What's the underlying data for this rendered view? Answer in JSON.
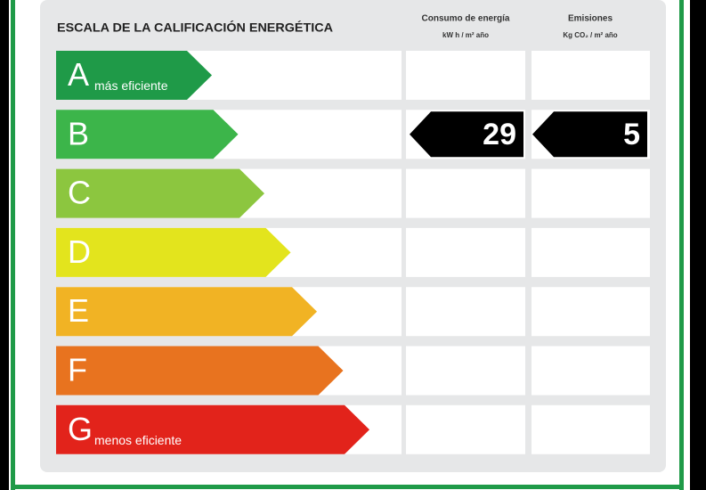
{
  "header": {
    "title": "ESCALA DE LA CALIFICACIÓN ENERGÉTICA",
    "columns": [
      {
        "title": "Consumo de energía",
        "unit": "kW h / m² año"
      },
      {
        "title": "Emisiones",
        "unit": "Kg CO₂ / m² año"
      }
    ]
  },
  "ratings": [
    {
      "letter": "A",
      "note": "más eficiente",
      "color": "#1f9a48"
    },
    {
      "letter": "B",
      "color": "#3cb54a"
    },
    {
      "letter": "C",
      "color": "#8cc63f"
    },
    {
      "letter": "D",
      "color": "#e3e41d"
    },
    {
      "letter": "E",
      "color": "#f1b324"
    },
    {
      "letter": "F",
      "color": "#e8731f"
    },
    {
      "letter": "G",
      "note": "menos eficiente",
      "color": "#e2231b"
    }
  ],
  "result": {
    "rating": "B",
    "consumption": 29,
    "emissions": 5
  }
}
